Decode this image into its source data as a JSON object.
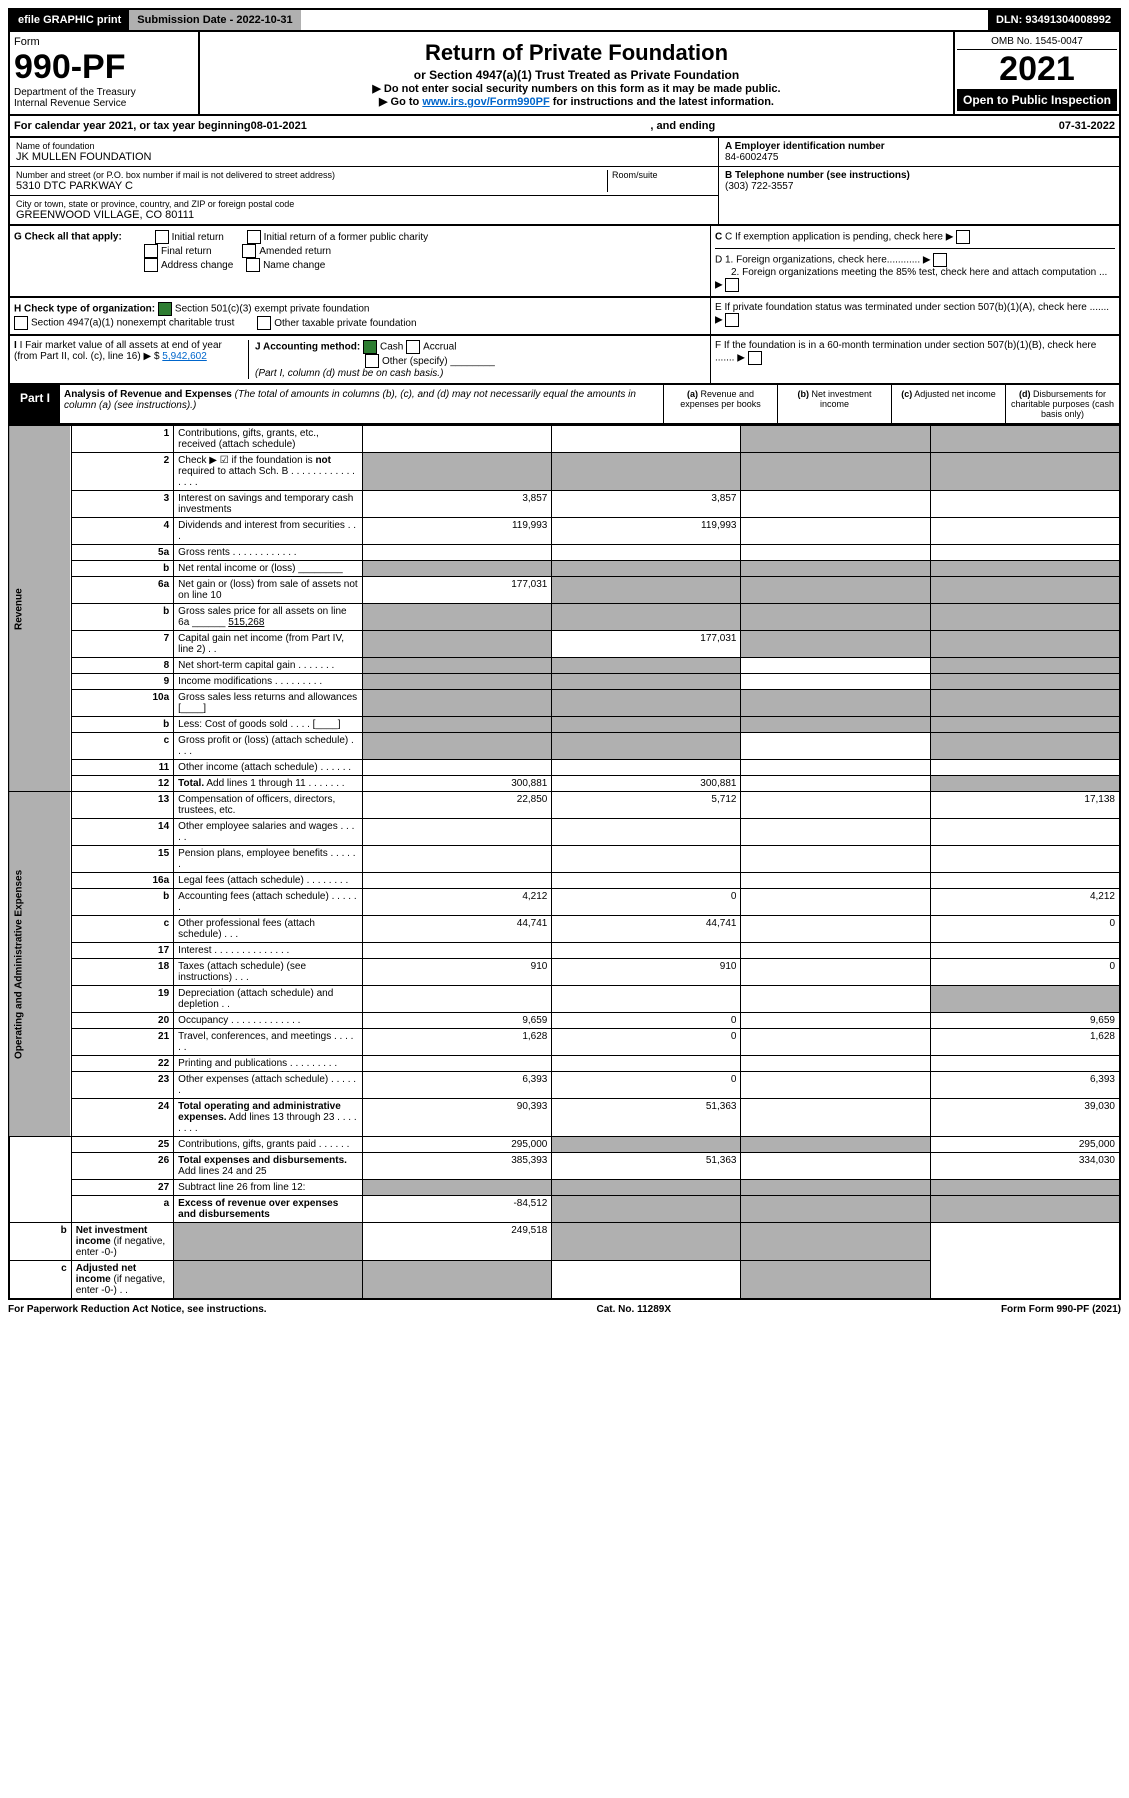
{
  "topbar": {
    "efile": "efile GRAPHIC print",
    "subdate_lbl": "Submission Date - ",
    "subdate": "2022-10-31",
    "dln_lbl": "DLN: ",
    "dln": "93491304008992"
  },
  "header": {
    "form": "Form",
    "f990": "990-PF",
    "dept": "Department of the Treasury",
    "irs": "Internal Revenue Service",
    "title": "Return of Private Foundation",
    "subtitle": "or Section 4947(a)(1) Trust Treated as Private Foundation",
    "note1": "▶ Do not enter social security numbers on this form as it may be made public.",
    "note2_pre": "▶ Go to ",
    "note2_link": "www.irs.gov/Form990PF",
    "note2_post": " for instructions and the latest information.",
    "omb": "OMB No. 1545-0047",
    "year": "2021",
    "open": "Open to Public Inspection"
  },
  "yearline": {
    "pre": "For calendar year 2021, or tax year beginning ",
    "begin": "08-01-2021",
    "mid": ", and ending ",
    "end": "07-31-2022"
  },
  "info": {
    "name_lbl": "Name of foundation",
    "name": "JK MULLEN FOUNDATION",
    "addr_lbl": "Number and street (or P.O. box number if mail is not delivered to street address)",
    "addr": "5310 DTC PARKWAY C",
    "room_lbl": "Room/suite",
    "city_lbl": "City or town, state or province, country, and ZIP or foreign postal code",
    "city": "GREENWOOD VILLAGE, CO  80111",
    "ein_lbl": "A Employer identification number",
    "ein": "84-6002475",
    "tel_lbl": "B Telephone number (see instructions)",
    "tel": "(303) 722-3557",
    "c": "C If exemption application is pending, check here",
    "d1": "D 1. Foreign organizations, check here............",
    "d2": "2. Foreign organizations meeting the 85% test, check here and attach computation ...",
    "e": "E  If private foundation status was terminated under section 507(b)(1)(A), check here .......",
    "f": "F  If the foundation is in a 60-month termination under section 507(b)(1)(B), check here ......."
  },
  "g": {
    "lbl": "G Check all that apply:",
    "opts": [
      "Initial return",
      "Final return",
      "Address change",
      "Initial return of a former public charity",
      "Amended return",
      "Name change"
    ]
  },
  "h": {
    "lbl": "H Check type of organization:",
    "o1": "Section 501(c)(3) exempt private foundation",
    "o2": "Section 4947(a)(1) nonexempt charitable trust",
    "o3": "Other taxable private foundation"
  },
  "i": {
    "lbl": "I Fair market value of all assets at end of year (from Part II, col. (c), line 16) ▶ $",
    "val": "5,942,602"
  },
  "j": {
    "lbl": "J Accounting method:",
    "o1": "Cash",
    "o2": "Accrual",
    "o3": "Other (specify)",
    "note": "(Part I, column (d) must be on cash basis.)"
  },
  "part1": {
    "tag": "Part I",
    "title": "Analysis of Revenue and Expenses",
    "note": "(The total of amounts in columns (b), (c), and (d) may not necessarily equal the amounts in column (a) (see instructions).)",
    "ca": "(a)",
    "cah": "Revenue and expenses per books",
    "cb": "(b)",
    "cbh": "Net investment income",
    "cc": "(c)",
    "cch": "Adjusted net income",
    "cd": "(d)",
    "cdh": "Disbursements for charitable purposes (cash basis only)"
  },
  "sidelabels": {
    "rev": "Revenue",
    "ope": "Operating and Administrative Expenses"
  },
  "rows": [
    {
      "n": "1",
      "t": "Contributions, gifts, grants, etc., received (attach schedule)",
      "a": "",
      "b": "",
      "cs": true,
      "ds": true
    },
    {
      "n": "2",
      "t": "Check ▶ ☑ if the foundation is <b>not</b> required to attach Sch. B   .  .  .  .  .  .  .  .  .  .  .  .  .  .  .  .",
      "as": true,
      "bs": true,
      "cs": true,
      "ds": true
    },
    {
      "n": "3",
      "t": "Interest on savings and temporary cash investments",
      "a": "3,857",
      "b": "3,857"
    },
    {
      "n": "4",
      "t": "Dividends and interest from securities   .   .   .",
      "a": "119,993",
      "b": "119,993"
    },
    {
      "n": "5a",
      "t": "Gross rents   .   .   .   .   .   .   .   .   .   .   .   ."
    },
    {
      "n": "b",
      "t": "Net rental income or (loss)  ________",
      "as": true,
      "bs": true,
      "cs": true,
      "ds": true
    },
    {
      "n": "6a",
      "t": "Net gain or (loss) from sale of assets not on line 10",
      "a": "177,031",
      "bs": true,
      "cs": true,
      "ds": true
    },
    {
      "n": "b",
      "t": "Gross sales price for all assets on line 6a ______ <u>515,268</u>",
      "as": true,
      "bs": true,
      "cs": true,
      "ds": true
    },
    {
      "n": "7",
      "t": "Capital gain net income (from Part IV, line 2)   .   .",
      "as": true,
      "b": "177,031",
      "cs": true,
      "ds": true
    },
    {
      "n": "8",
      "t": "Net short-term capital gain   .   .   .   .   .   .   .",
      "as": true,
      "bs": true,
      "ds": true
    },
    {
      "n": "9",
      "t": "Income modifications   .   .   .   .   .   .   .   .   .",
      "as": true,
      "bs": true,
      "ds": true
    },
    {
      "n": "10a",
      "t": "Gross sales less returns and allowances  [____]",
      "as": true,
      "bs": true,
      "cs": true,
      "ds": true
    },
    {
      "n": "b",
      "t": "Less: Cost of goods sold   .   .   .   .  [____]",
      "as": true,
      "bs": true,
      "cs": true,
      "ds": true
    },
    {
      "n": "c",
      "t": "Gross profit or (loss) (attach schedule)   .   .   .   .",
      "as": true,
      "bs": true,
      "ds": true
    },
    {
      "n": "11",
      "t": "Other income (attach schedule)   .   .   .   .   .   ."
    },
    {
      "n": "12",
      "t": "<b>Total.</b> Add lines 1 through 11   .   .   .   .   .   .   .",
      "a": "300,881",
      "b": "300,881",
      "ds": true
    },
    {
      "n": "13",
      "t": "Compensation of officers, directors, trustees, etc.",
      "a": "22,850",
      "b": "5,712",
      "d": "17,138",
      "sec": "ope"
    },
    {
      "n": "14",
      "t": "Other employee salaries and wages   .   .   .   .   ."
    },
    {
      "n": "15",
      "t": "Pension plans, employee benefits   .   .   .   .   .   ."
    },
    {
      "n": "16a",
      "t": "Legal fees (attach schedule)   .   .   .   .   .   .   .   ."
    },
    {
      "n": "b",
      "t": "Accounting fees (attach schedule)   .   .   .   .   .   .",
      "a": "4,212",
      "b": "0",
      "d": "4,212"
    },
    {
      "n": "c",
      "t": "Other professional fees (attach schedule)   .   .   .",
      "a": "44,741",
      "b": "44,741",
      "d": "0"
    },
    {
      "n": "17",
      "t": "Interest   .   .   .   .   .   .   .   .   .   .   .   .   .   ."
    },
    {
      "n": "18",
      "t": "Taxes (attach schedule) (see instructions)   .   .   .",
      "a": "910",
      "b": "910",
      "d": "0"
    },
    {
      "n": "19",
      "t": "Depreciation (attach schedule) and depletion   .   .",
      "ds": true
    },
    {
      "n": "20",
      "t": "Occupancy   .   .   .   .   .   .   .   .   .   .   .   .   .",
      "a": "9,659",
      "b": "0",
      "d": "9,659"
    },
    {
      "n": "21",
      "t": "Travel, conferences, and meetings   .   .   .   .   .   .",
      "a": "1,628",
      "b": "0",
      "d": "1,628"
    },
    {
      "n": "22",
      "t": "Printing and publications   .   .   .   .   .   .   .   .   ."
    },
    {
      "n": "23",
      "t": "Other expenses (attach schedule)   .   .   .   .   .   .",
      "a": "6,393",
      "b": "0",
      "d": "6,393"
    },
    {
      "n": "24",
      "t": "<b>Total operating and administrative expenses.</b> Add lines 13 through 23   .   .   .   .   .   .   .   .",
      "a": "90,393",
      "b": "51,363",
      "d": "39,030"
    },
    {
      "n": "25",
      "t": "Contributions, gifts, grants paid   .   .   .   .   .   .",
      "a": "295,000",
      "bs": true,
      "cs": true,
      "d": "295,000"
    },
    {
      "n": "26",
      "t": "<b>Total expenses and disbursements.</b> Add lines 24 and 25",
      "a": "385,393",
      "b": "51,363",
      "d": "334,030"
    },
    {
      "n": "27",
      "t": "Subtract line 26 from line 12:",
      "as": true,
      "bs": true,
      "cs": true,
      "ds": true,
      "sec": "none"
    },
    {
      "n": "a",
      "t": "<b>Excess of revenue over expenses and disbursements</b>",
      "a": "-84,512",
      "bs": true,
      "cs": true,
      "ds": true
    },
    {
      "n": "b",
      "t": "<b>Net investment income</b> (if negative, enter -0-)",
      "as": true,
      "b": "249,518",
      "cs": true,
      "ds": true
    },
    {
      "n": "c",
      "t": "<b>Adjusted net income</b> (if negative, enter -0-)   .   .",
      "as": true,
      "bs": true,
      "ds": true
    }
  ],
  "footer": {
    "l": "For Paperwork Reduction Act Notice, see instructions.",
    "c": "Cat. No. 11289X",
    "r": "Form 990-PF (2021)"
  }
}
